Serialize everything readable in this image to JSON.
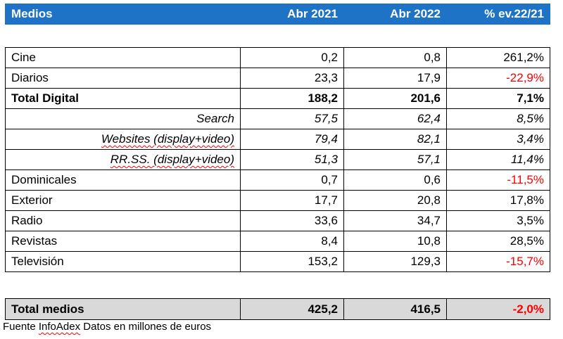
{
  "header": {
    "col_medios": "Medios",
    "col_abr2021": "Abr 2021",
    "col_abr2022": "Abr 2022",
    "col_ev": "% ev.22/21"
  },
  "rows": [
    {
      "label": "Cine",
      "a2021": "0,2",
      "a2022": "0,8",
      "ev": "261,2%"
    },
    {
      "label": "Diarios",
      "a2021": "23,3",
      "a2022": "17,9",
      "ev": "-22,9%"
    },
    {
      "label": "Total Digital",
      "a2021": "188,2",
      "a2022": "201,6",
      "ev": "7,1%"
    },
    {
      "label": "Search",
      "a2021": "57,5",
      "a2022": "62,4",
      "ev": "8,5%"
    },
    {
      "label": "Websites (display+video)",
      "a2021": "79,4",
      "a2022": "82,1",
      "ev": "3,4%"
    },
    {
      "label": "RR.SS. (display+video)",
      "a2021": "51,3",
      "a2022": "57,1",
      "ev": "11,4%"
    },
    {
      "label": "Dominicales",
      "a2021": "0,7",
      "a2022": "0,6",
      "ev": "-11,5%"
    },
    {
      "label": "Exterior",
      "a2021": "17,7",
      "a2022": "20,8",
      "ev": "17,8%"
    },
    {
      "label": "Radio",
      "a2021": "33,6",
      "a2022": "34,7",
      "ev": "3,5%"
    },
    {
      "label": "Revistas",
      "a2021": "8,4",
      "a2022": "10,8",
      "ev": "28,5%"
    },
    {
      "label": "Televisión",
      "a2021": "153,2",
      "a2022": "129,3",
      "ev": "-15,7%"
    }
  ],
  "total": {
    "label": "Total medios",
    "a2021": "425,2",
    "a2022": "416,5",
    "ev": "-2,0%"
  },
  "footer": {
    "source_label": "Fuente",
    "source_name": "InfoAdex",
    "note": "Datos en millones de euros"
  },
  "colors": {
    "header_bg": "#1f73c7",
    "total_bg": "#d9d9d9",
    "negative": "#ff0000"
  }
}
